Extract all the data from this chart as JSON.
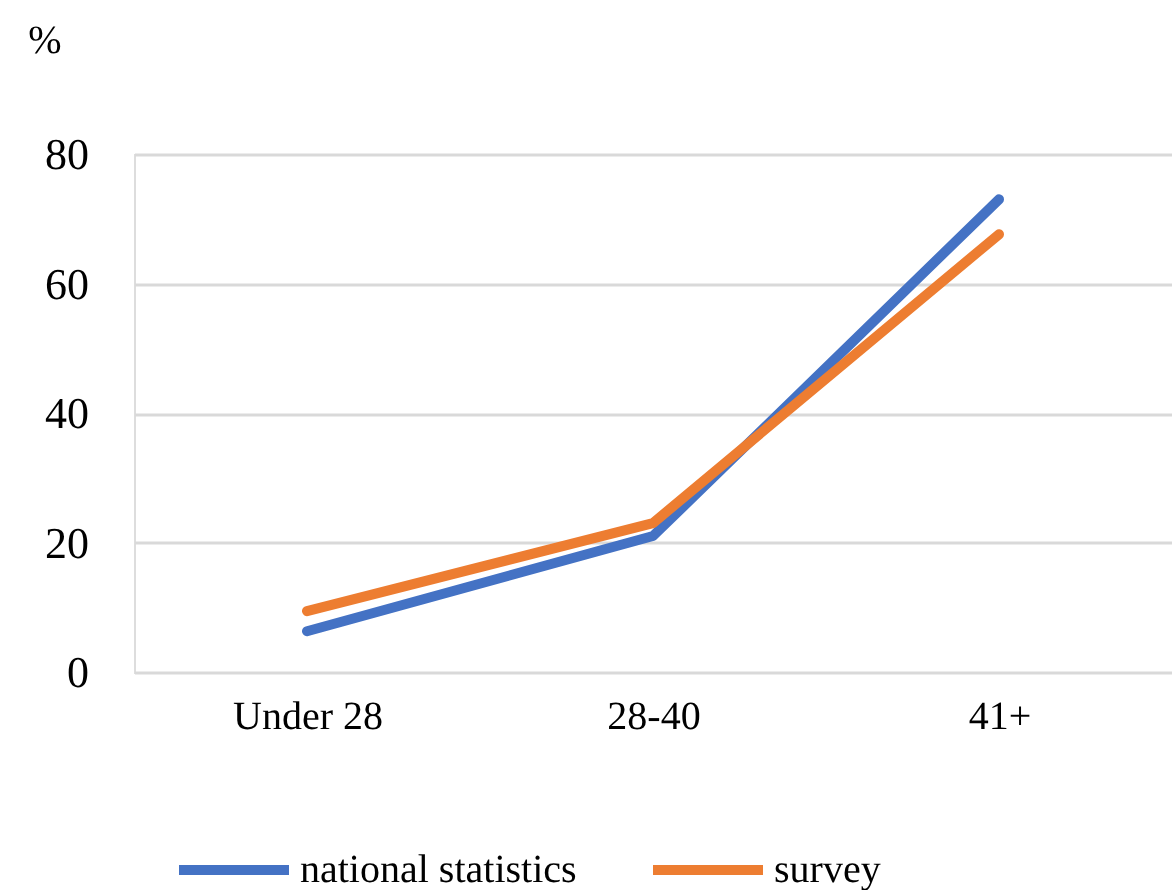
{
  "chart_data": {
    "type": "line",
    "ylabel": "%",
    "categories": [
      "Under 28",
      "28-40",
      "41+"
    ],
    "series": [
      {
        "name": "national statistics",
        "color": "#4472c4",
        "values": [
          6.3,
          21,
          73
        ]
      },
      {
        "name": "survey",
        "color": "#ed7d31",
        "values": [
          9.4,
          23,
          67.6
        ]
      }
    ],
    "ylim": [
      0,
      80
    ],
    "yticks": [
      0,
      20,
      40,
      60,
      80
    ],
    "grid": "y",
    "legend": "bottom",
    "line_style": "solid"
  }
}
